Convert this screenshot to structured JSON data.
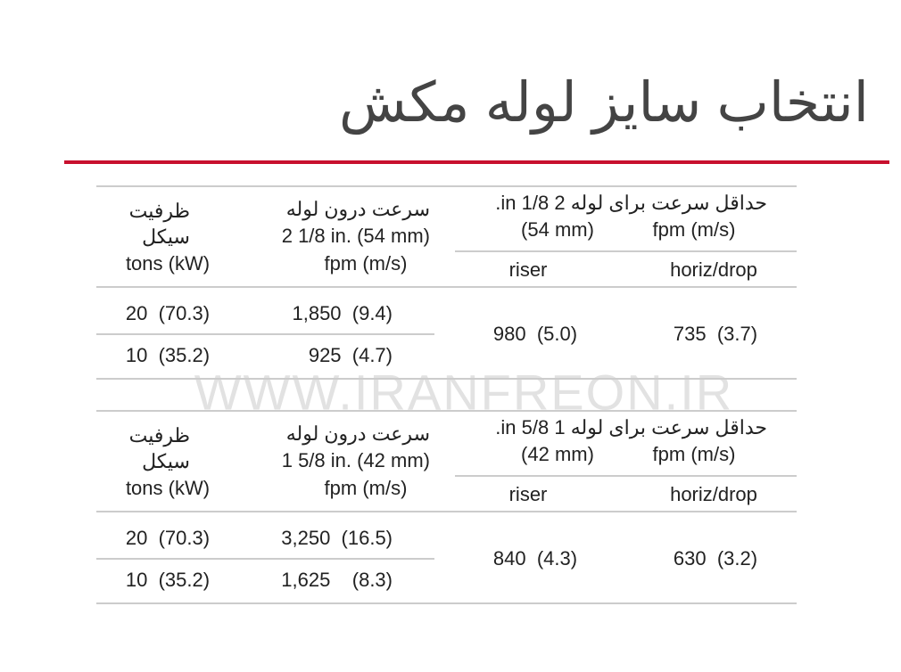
{
  "title": "انتخاب سایز لوله مکش",
  "watermark": "WWW.IRANFREON.IR",
  "tables": [
    {
      "header": {
        "capacity": [
          "ظرفیت",
          "سیکل",
          "tons (kW)"
        ],
        "velocity": [
          "سرعت درون لوله",
          "2 1/8 in. (54 mm)",
          "fpm (m/s)"
        ],
        "min_velocity": [
          "حداقل سرعت برای لوله 2 1/8 in.",
          "(54 mm)",
          "fpm (m/s)"
        ],
        "riser": "riser",
        "horiz": "horiz/drop"
      },
      "rows": [
        [
          "20  (70.3)",
          "1,850  (9.4)"
        ],
        [
          "10  (35.2)",
          "925  (4.7)"
        ]
      ],
      "min": [
        "980  (5.0)",
        "735  (3.7)"
      ]
    },
    {
      "header": {
        "capacity": [
          "ظرفیت",
          "سیکل",
          "tons (kW)"
        ],
        "velocity": [
          "سرعت درون لوله",
          "1 5/8 in. (42 mm)",
          "fpm (m/s)"
        ],
        "min_velocity": [
          "حداقل سرعت برای لوله 1 5/8 in.",
          "(42 mm)",
          "fpm (m/s)"
        ],
        "riser": "riser",
        "horiz": "horiz/drop"
      },
      "rows": [
        [
          "20  (70.3)",
          "3,250  (16.5)"
        ],
        [
          "10  (35.2)",
          "1,625    (8.3)"
        ]
      ],
      "min": [
        "840  (4.3)",
        "630  (3.2)"
      ]
    }
  ]
}
